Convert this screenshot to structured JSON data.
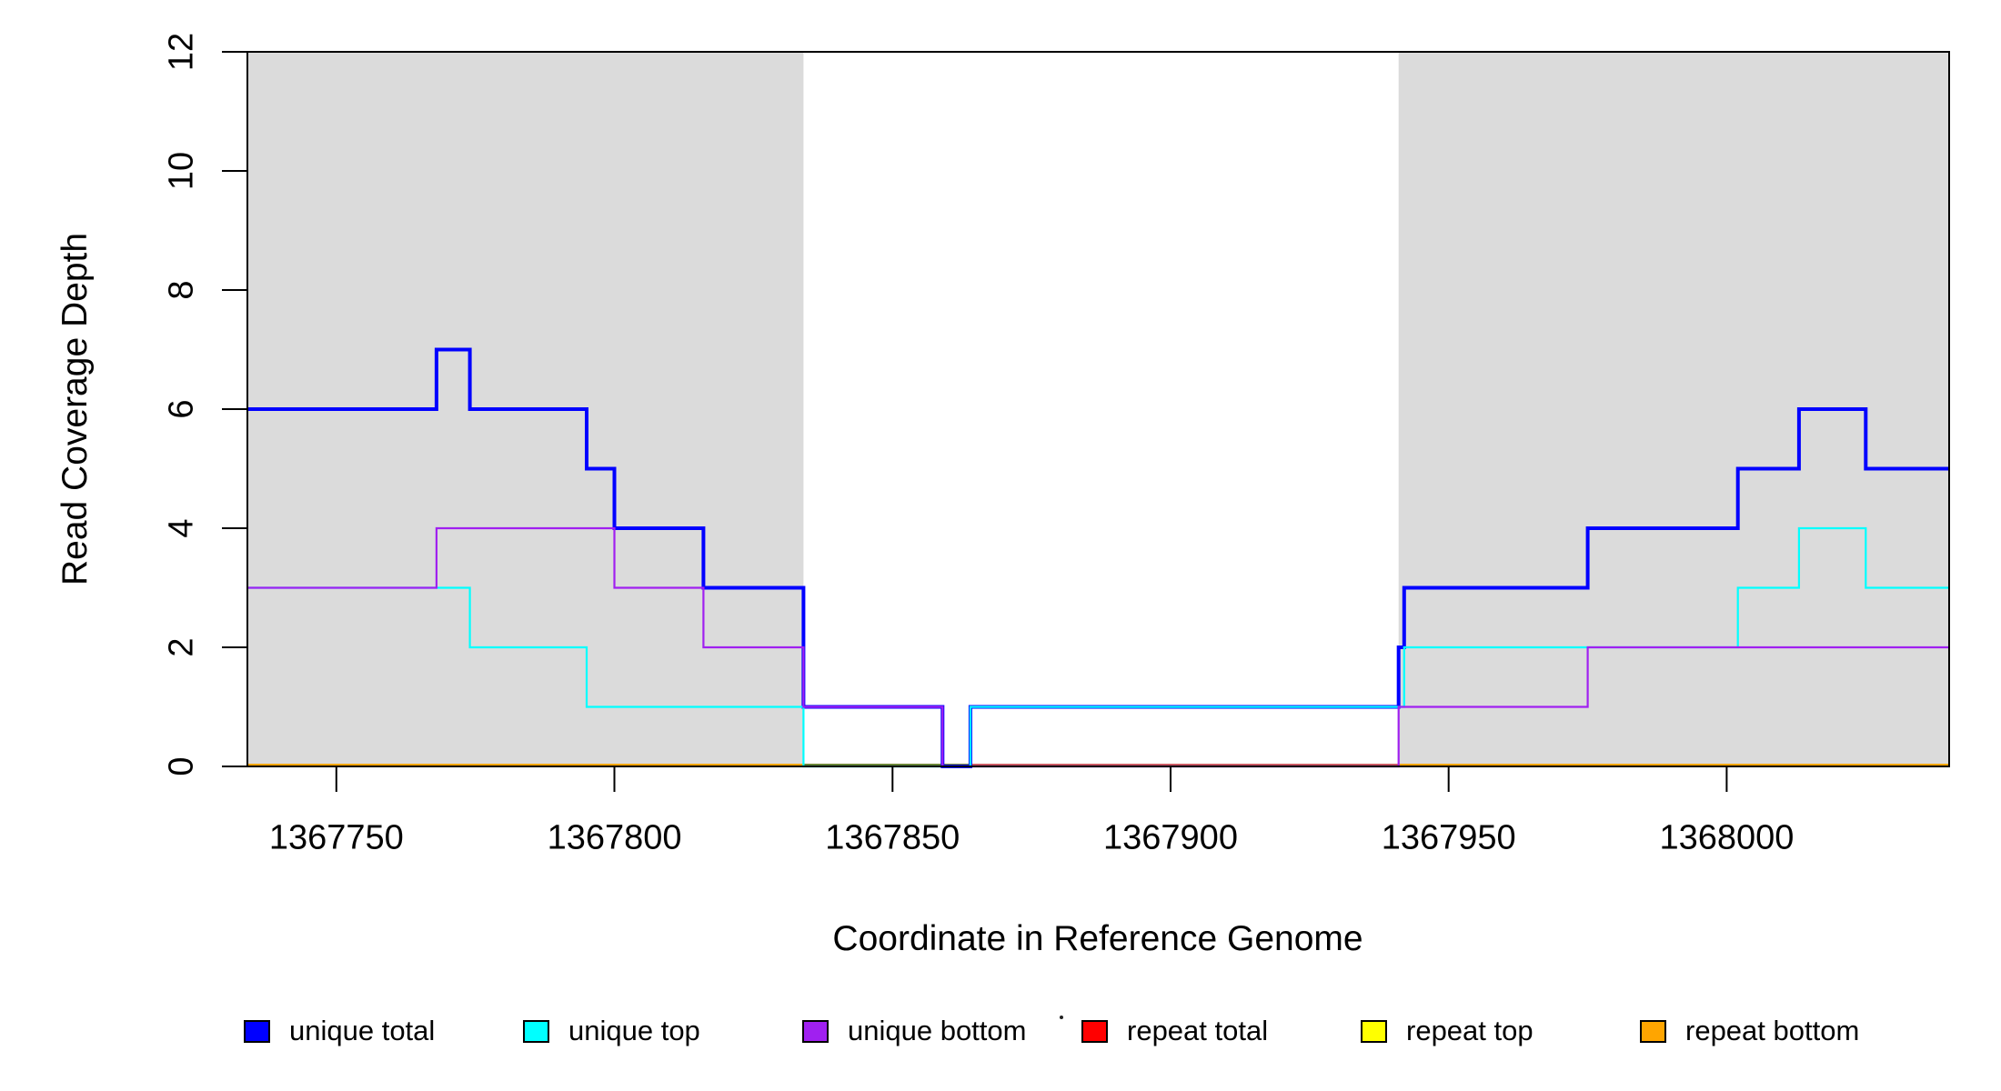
{
  "chart_data": {
    "type": "line",
    "subtype": "step-coverage-plot",
    "title": "",
    "xlabel": "Coordinate in Reference Genome",
    "ylabel": "Read Coverage Depth",
    "xlim": [
      1367734,
      1368040
    ],
    "ylim": [
      0,
      12
    ],
    "grid": false,
    "x_ticks": [
      1367750,
      1367800,
      1367850,
      1367900,
      1367950,
      1368000
    ],
    "x_tick_labels": [
      "1367750",
      "1367800",
      "1367850",
      "1367900",
      "1367950",
      "1368000"
    ],
    "y_ticks": [
      0,
      2,
      4,
      6,
      8,
      10,
      12
    ],
    "y_tick_labels": [
      "0",
      "2",
      "4",
      "6",
      "8",
      "10",
      "12"
    ],
    "shade_color": "#DBDBDB",
    "frame_color": "#000000",
    "shaded_regions": [
      {
        "from": 1367734,
        "to": 1367834
      },
      {
        "from": 1367941,
        "to": 1368040
      }
    ],
    "series": [
      {
        "name": "unique total",
        "color": "#0000FF",
        "width": 4,
        "points": [
          [
            1367734,
            6
          ],
          [
            1367768,
            7
          ],
          [
            1367774,
            6
          ],
          [
            1367795,
            5
          ],
          [
            1367800,
            4
          ],
          [
            1367816,
            3
          ],
          [
            1367834,
            1
          ],
          [
            1367859,
            0
          ],
          [
            1367864,
            1
          ],
          [
            1367941,
            2
          ],
          [
            1367942,
            3
          ],
          [
            1367975,
            4
          ],
          [
            1368002,
            5
          ],
          [
            1368013,
            6
          ],
          [
            1368025,
            5
          ],
          [
            1368040,
            5
          ]
        ]
      },
      {
        "name": "unique top",
        "color": "#00FFFF",
        "width": 2.2,
        "points": [
          [
            1367734,
            3
          ],
          [
            1367774,
            2
          ],
          [
            1367795,
            1
          ],
          [
            1367834,
            0
          ],
          [
            1367864,
            1
          ],
          [
            1367942,
            2
          ],
          [
            1368002,
            3
          ],
          [
            1368013,
            4
          ],
          [
            1368025,
            3
          ],
          [
            1368040,
            3
          ]
        ]
      },
      {
        "name": "unique bottom",
        "color": "#A020F0",
        "width": 2.2,
        "points": [
          [
            1367734,
            3
          ],
          [
            1367768,
            4
          ],
          [
            1367800,
            3
          ],
          [
            1367816,
            2
          ],
          [
            1367834,
            1
          ],
          [
            1367859,
            0
          ],
          [
            1367941,
            1
          ],
          [
            1367975,
            2
          ],
          [
            1368040,
            2
          ]
        ]
      },
      {
        "name": "repeat total",
        "color": "#FF0000",
        "width": 2.6,
        "points": [
          [
            1367734,
            0
          ],
          [
            1368040,
            0
          ]
        ]
      },
      {
        "name": "repeat top",
        "color": "#FFFF00",
        "width": 2.6,
        "points": [
          [
            1367734,
            0
          ],
          [
            1368040,
            0
          ]
        ]
      },
      {
        "name": "repeat bottom",
        "color": "#FFA500",
        "width": 2.6,
        "points": [
          [
            1367734,
            0
          ],
          [
            1368040,
            0
          ]
        ]
      }
    ],
    "baseline_draw_order": [
      "repeat top",
      "repeat total",
      "repeat bottom"
    ],
    "unique_draw_order": [
      "unique total",
      "unique top",
      "unique bottom"
    ],
    "baseline_overlays": [
      {
        "color": "#6F7F2D",
        "from": 1367834,
        "to": 1367864
      },
      {
        "color": "#CD5C5C",
        "from": 1367864,
        "to": 1367941
      }
    ],
    "legend": {
      "position": "bottom",
      "entries": [
        {
          "label": "unique total",
          "color": "#0000FF"
        },
        {
          "label": "unique top",
          "color": "#00FFFF"
        },
        {
          "label": "unique bottom",
          "color": "#A020F0"
        },
        {
          "label": "repeat total",
          "color": "#FF0000"
        },
        {
          "label": "repeat top",
          "color": "#FFFF00"
        },
        {
          "label": "repeat bottom",
          "color": "#FFA500"
        }
      ]
    }
  }
}
